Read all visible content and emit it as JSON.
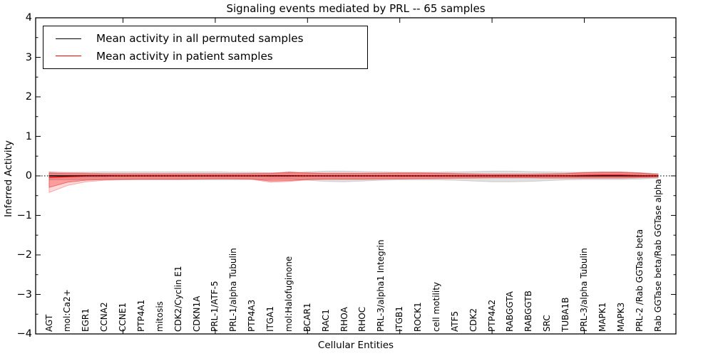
{
  "figure": {
    "title": "Signaling events mediated by PRL -- 65 samples",
    "xlabel": "Cellular Entities",
    "ylabel": "Inferred Activity"
  },
  "legend": {
    "items": [
      {
        "label": "Mean activity in all permuted samples",
        "color": "#000000"
      },
      {
        "label": "Mean activity in patient samples",
        "color": "#ff0000"
      }
    ]
  },
  "chart_data": {
    "type": "line",
    "title": "Signaling events mediated by PRL -- 65 samples",
    "xlabel": "Cellular Entities",
    "ylabel": "Inferred Activity",
    "ylim": [
      -4,
      4
    ],
    "yticks": [
      4,
      3,
      2,
      1,
      0,
      -1,
      -2,
      -3,
      -4
    ],
    "grid": false,
    "legend_position": "upper left",
    "categories": [
      "AGT",
      "mol:Ca2+",
      "EGR1",
      "CCNA2",
      "CCNE1",
      "PTP4A1",
      "mitosis",
      "CDK2/Cyclin E1",
      "CDKN1A",
      "PRL-1/ATF-5",
      "PRL-1/alpha Tubulin",
      "PTP4A3",
      "ITGA1",
      "mol:Halofuginone",
      "BCAR1",
      "RAC1",
      "RHOA",
      "RHOC",
      "PRL-3/alpha1 Integrin",
      "ITGB1",
      "ROCK1",
      "cell motility",
      "ATF5",
      "CDK2",
      "PTP4A2",
      "RABGGTA",
      "RABGGTB",
      "SRC",
      "TUBA1B",
      "PRL-3/alpha Tubulin",
      "MAPK1",
      "MAPK3",
      "PRL-2 /Rab GGTase beta",
      "Rab GGTase beta/Rab GGTase alpha"
    ],
    "series": [
      {
        "name": "Mean activity in all permuted samples",
        "color": "#000000",
        "style": "solid",
        "values": [
          0,
          0,
          0,
          0,
          0,
          0,
          0,
          0,
          0,
          0,
          0,
          0,
          0,
          0,
          0,
          0,
          0,
          0,
          0,
          0,
          0,
          0,
          0,
          0,
          0,
          0,
          0,
          0,
          0,
          0,
          0,
          0,
          0,
          0
        ]
      },
      {
        "name": "Mean activity in patient samples",
        "color": "#ff0000",
        "style": "solid",
        "values": [
          -0.04,
          -0.02,
          -0.01,
          -0.01,
          0,
          0,
          0,
          0,
          0,
          0,
          0,
          0,
          -0.01,
          -0.01,
          0,
          0,
          0,
          0,
          0,
          0.005,
          0.005,
          0.005,
          0,
          0,
          0,
          0,
          0,
          0,
          0.005,
          0.015,
          0.02,
          0.02,
          0.01,
          0
        ]
      }
    ],
    "reference_line": {
      "y": 0,
      "style": "dotted",
      "color": "#000000"
    },
    "bands": [
      {
        "name": "permuted-samples-range",
        "color": "#000000",
        "opacity": 0.12,
        "edge_color": "#bbbbbb",
        "upper": [
          0.09,
          0.09,
          0.09,
          0.1,
          0.1,
          0.1,
          0.1,
          0.1,
          0.1,
          0.1,
          0.09,
          0.09,
          0.08,
          0.07,
          0.1,
          0.12,
          0.12,
          0.11,
          0.1,
          0.09,
          0.09,
          0.09,
          0.1,
          0.11,
          0.12,
          0.12,
          0.11,
          0.1,
          0.09,
          0.09,
          0.09,
          0.08,
          0.08,
          0.06
        ],
        "lower": [
          -0.1,
          -0.1,
          -0.1,
          -0.1,
          -0.1,
          -0.1,
          -0.1,
          -0.1,
          -0.1,
          -0.1,
          -0.1,
          -0.09,
          -0.09,
          -0.08,
          -0.11,
          -0.14,
          -0.15,
          -0.13,
          -0.11,
          -0.1,
          -0.1,
          -0.1,
          -0.11,
          -0.13,
          -0.15,
          -0.15,
          -0.14,
          -0.12,
          -0.1,
          -0.09,
          -0.09,
          -0.09,
          -0.08,
          -0.06
        ]
      },
      {
        "name": "patient-samples-range-outer",
        "color": "#ff0000",
        "opacity": 0.15,
        "edge_color": "#ff8080",
        "upper": [
          0.1,
          0.08,
          0.07,
          0.06,
          0.06,
          0.06,
          0.06,
          0.06,
          0.06,
          0.06,
          0.06,
          0.065,
          0.07,
          0.1,
          0.08,
          0.07,
          0.07,
          0.07,
          0.075,
          0.08,
          0.08,
          0.075,
          0.065,
          0.055,
          0.05,
          0.05,
          0.05,
          0.055,
          0.065,
          0.09,
          0.1,
          0.1,
          0.08,
          0.04
        ],
        "lower": [
          -0.42,
          -0.24,
          -0.15,
          -0.11,
          -0.1,
          -0.09,
          -0.09,
          -0.09,
          -0.085,
          -0.08,
          -0.08,
          -0.09,
          -0.16,
          -0.14,
          -0.1,
          -0.09,
          -0.09,
          -0.09,
          -0.085,
          -0.08,
          -0.075,
          -0.07,
          -0.065,
          -0.06,
          -0.055,
          -0.055,
          -0.055,
          -0.06,
          -0.06,
          -0.06,
          -0.06,
          -0.06,
          -0.05,
          -0.04
        ]
      },
      {
        "name": "patient-samples-range-inner",
        "color": "#ff0000",
        "opacity": 0.28,
        "edge_color": "#d94f4f",
        "upper": [
          0.07,
          0.06,
          0.055,
          0.05,
          0.05,
          0.05,
          0.05,
          0.05,
          0.05,
          0.05,
          0.05,
          0.055,
          0.06,
          0.09,
          0.07,
          0.06,
          0.06,
          0.06,
          0.065,
          0.07,
          0.07,
          0.065,
          0.055,
          0.045,
          0.04,
          0.04,
          0.04,
          0.045,
          0.055,
          0.08,
          0.09,
          0.09,
          0.07,
          0.035
        ],
        "lower": [
          -0.29,
          -0.16,
          -0.11,
          -0.09,
          -0.085,
          -0.08,
          -0.08,
          -0.08,
          -0.075,
          -0.07,
          -0.07,
          -0.08,
          -0.13,
          -0.12,
          -0.09,
          -0.08,
          -0.08,
          -0.08,
          -0.075,
          -0.07,
          -0.065,
          -0.06,
          -0.055,
          -0.05,
          -0.045,
          -0.045,
          -0.045,
          -0.05,
          -0.05,
          -0.05,
          -0.05,
          -0.05,
          -0.04,
          -0.035
        ]
      }
    ]
  }
}
